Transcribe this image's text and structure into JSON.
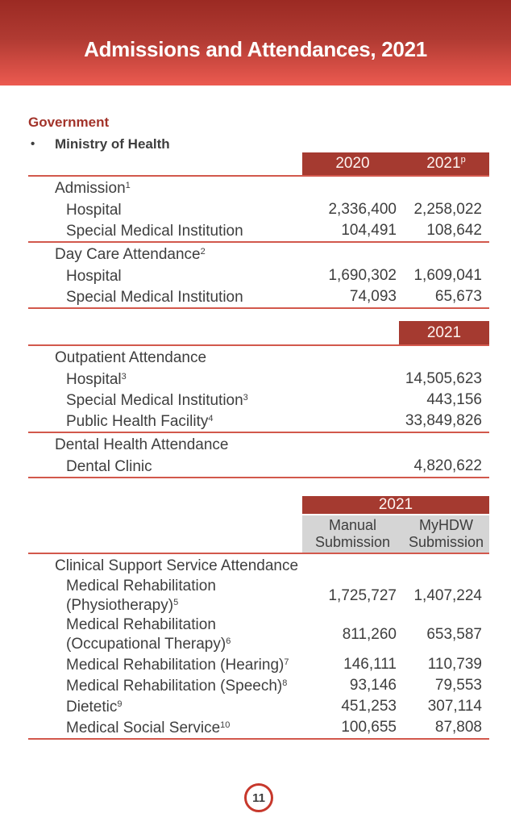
{
  "colors": {
    "banner-top": "#9B2A23",
    "banner-bottom": "#EC5A50",
    "header-red": "#A53A30",
    "rule-red": "#D2584C",
    "subhead-gray": "#D5D5D5",
    "text-dark": "#3E3E3E",
    "heading-red": "#A2332A",
    "circle-red": "#C7382C"
  },
  "banner": {
    "title": "Admissions and Attendances, 2021"
  },
  "intro": {
    "heading": "Government",
    "bullet": "•",
    "item": "Ministry of Health"
  },
  "table1": {
    "col_headers": [
      {
        "text": "2020"
      },
      {
        "text": "2021",
        "sup": "p"
      }
    ],
    "groups": [
      {
        "label": "Admission",
        "sup": "1",
        "rows": [
          {
            "label": "Hospital",
            "v1": "2,336,400",
            "v2": "2,258,022"
          },
          {
            "label": "Special Medical Institution",
            "v1": "104,491",
            "v2": "108,642"
          }
        ]
      },
      {
        "label": "Day Care Attendance",
        "sup": "2",
        "rows": [
          {
            "label": "Hospital",
            "v1": "1,690,302",
            "v2": "1,609,041"
          },
          {
            "label": "Special Medical Institution",
            "v1": "74,093",
            "v2": "65,673"
          }
        ]
      }
    ]
  },
  "table2": {
    "col_header": "2021",
    "groups": [
      {
        "label": "Outpatient Attendance",
        "rows": [
          {
            "label": "Hospital",
            "sup": "3",
            "v": "14,505,623"
          },
          {
            "label": "Special Medical Institution",
            "sup": "3",
            "v": "443,156"
          },
          {
            "label": "Public Health Facility",
            "sup": "4",
            "v": "33,849,826"
          }
        ]
      },
      {
        "label": "Dental Health Attendance",
        "rows": [
          {
            "label": "Dental Clinic",
            "v": "4,820,622"
          }
        ]
      }
    ]
  },
  "table3": {
    "year_header": "2021",
    "sub_headers": [
      [
        "Manual",
        "Submission"
      ],
      [
        "MyHDW",
        "Submission"
      ]
    ],
    "group_label": "Clinical Support Service Attendance",
    "rows": [
      {
        "label": "Medical Rehabilitation",
        "label2": "(Physiotherapy)",
        "sup": "5",
        "v1": "1,725,727",
        "v2": "1,407,224"
      },
      {
        "label": "Medical Rehabilitation",
        "label2": "(Occupational Therapy)",
        "sup": "6",
        "v1": "811,260",
        "v2": "653,587"
      },
      {
        "label": "Medical Rehabilitation (Hearing)",
        "sup": "7",
        "v1": "146,111",
        "v2": "110,739"
      },
      {
        "label": "Medical Rehabilitation (Speech)",
        "sup": "8",
        "v1": "93,146",
        "v2": "79,553"
      },
      {
        "label": "Dietetic",
        "sup": "9",
        "v1": "451,253",
        "v2": "307,114"
      },
      {
        "label": "Medical Social Service",
        "sup": "10",
        "v1": "100,655",
        "v2": "87,808"
      }
    ]
  },
  "footer": {
    "page_number": "11"
  }
}
